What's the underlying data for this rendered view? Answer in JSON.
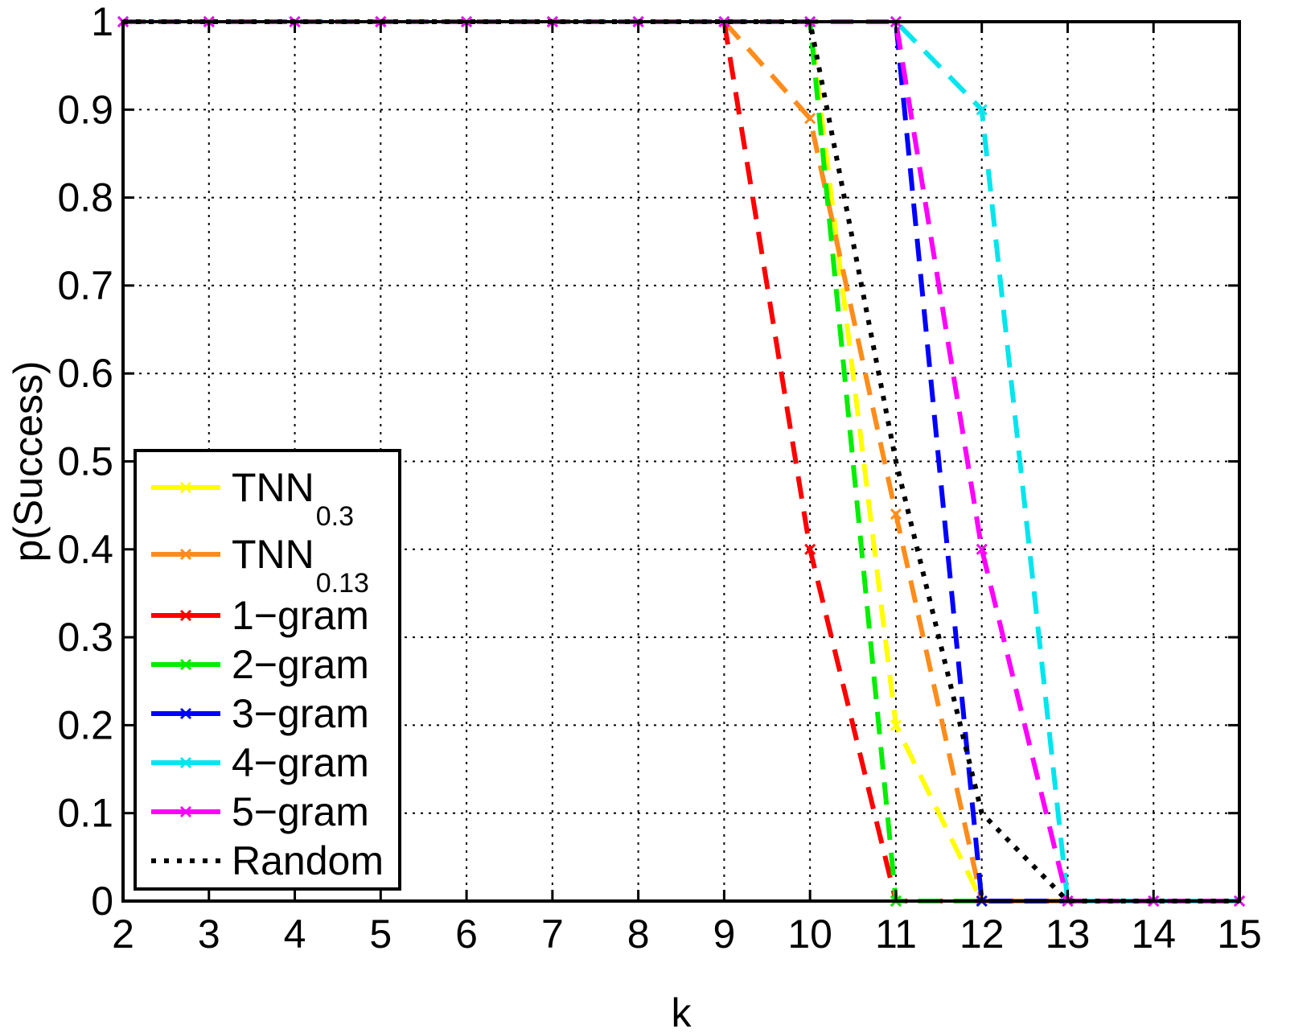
{
  "chart_data": {
    "type": "line",
    "xlabel": "k",
    "ylabel": "p(Success)",
    "xlim": [
      2,
      15
    ],
    "ylim": [
      0,
      1
    ],
    "grid": true,
    "legend_position": "bottom-left",
    "x": [
      2,
      3,
      4,
      5,
      6,
      7,
      8,
      9,
      10,
      11,
      12,
      13,
      14,
      15
    ],
    "xticks": [
      "2",
      "3",
      "4",
      "5",
      "6",
      "7",
      "8",
      "9",
      "10",
      "11",
      "12",
      "13",
      "14",
      "15"
    ],
    "yticks": [
      "0",
      "0.1",
      "0.2",
      "0.3",
      "0.4",
      "0.5",
      "0.6",
      "0.7",
      "0.8",
      "0.9",
      "1"
    ],
    "series": [
      {
        "name": "TNN",
        "sub": "0.3",
        "color": "#ffff00",
        "dash": "dashed",
        "marker": "x",
        "values": [
          1,
          1,
          1,
          1,
          1,
          1,
          1,
          1,
          1,
          0.2,
          0,
          0,
          0,
          0
        ]
      },
      {
        "name": "TNN",
        "sub": "0.13",
        "color": "#ff8c1a",
        "dash": "dashed",
        "marker": "x",
        "values": [
          1,
          1,
          1,
          1,
          1,
          1,
          1,
          1,
          0.89,
          0.44,
          0,
          0,
          0,
          0
        ]
      },
      {
        "name": "1−gram",
        "sub": "",
        "color": "#ff0000",
        "dash": "dashed",
        "marker": "x",
        "values": [
          1,
          1,
          1,
          1,
          1,
          1,
          1,
          1,
          0.4,
          0,
          0,
          0,
          0,
          0
        ]
      },
      {
        "name": "2−gram",
        "sub": "",
        "color": "#00ee00",
        "dash": "dashed",
        "marker": "x",
        "values": [
          1,
          1,
          1,
          1,
          1,
          1,
          1,
          1,
          1,
          0,
          0,
          0,
          0,
          0
        ]
      },
      {
        "name": "3−gram",
        "sub": "",
        "color": "#0000ff",
        "dash": "dashed",
        "marker": "x",
        "values": [
          1,
          1,
          1,
          1,
          1,
          1,
          1,
          1,
          1,
          1,
          0,
          0,
          0,
          0
        ]
      },
      {
        "name": "4−gram",
        "sub": "",
        "color": "#00e5ee",
        "dash": "dashed",
        "marker": "x",
        "values": [
          1,
          1,
          1,
          1,
          1,
          1,
          1,
          1,
          1,
          1,
          0.9,
          0,
          0,
          0
        ]
      },
      {
        "name": "5−gram",
        "sub": "",
        "color": "#ff00ff",
        "dash": "dashed",
        "marker": "x",
        "values": [
          1,
          1,
          1,
          1,
          1,
          1,
          1,
          1,
          1,
          1,
          0.4,
          0,
          0,
          0
        ]
      },
      {
        "name": "Random",
        "sub": "",
        "color": "#000000",
        "dash": "dotted",
        "marker": "none",
        "values": [
          1,
          1,
          1,
          1,
          1,
          1,
          1,
          1,
          1,
          0.5,
          0.1,
          0,
          0,
          0
        ]
      }
    ]
  }
}
